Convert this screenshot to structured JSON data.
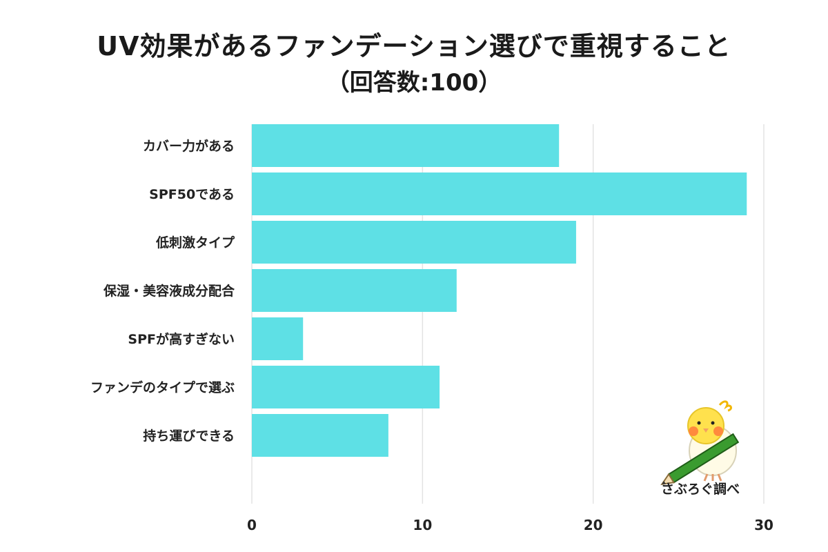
{
  "title": "UV効果があるファンデーション選びで重視すること",
  "subtitle": "（回答数:100）",
  "chart_data": {
    "type": "bar",
    "orientation": "horizontal",
    "categories": [
      "カバー力がある",
      "SPF50である",
      "低刺激タイプ",
      "保湿・美容液成分配合",
      "SPFが高すぎない",
      "ファンデのタイプで選ぶ",
      "持ち運びできる"
    ],
    "values": [
      18,
      29,
      19,
      12,
      3,
      11,
      8
    ],
    "xlim": [
      0,
      30
    ],
    "xticks": [
      "0",
      "10",
      "20",
      "30"
    ],
    "grid": "vertical",
    "bar_color": "#5ee0e5"
  },
  "logo": {
    "text": "さぶろぐ調べ",
    "icon": "bird-with-pencil-icon"
  }
}
